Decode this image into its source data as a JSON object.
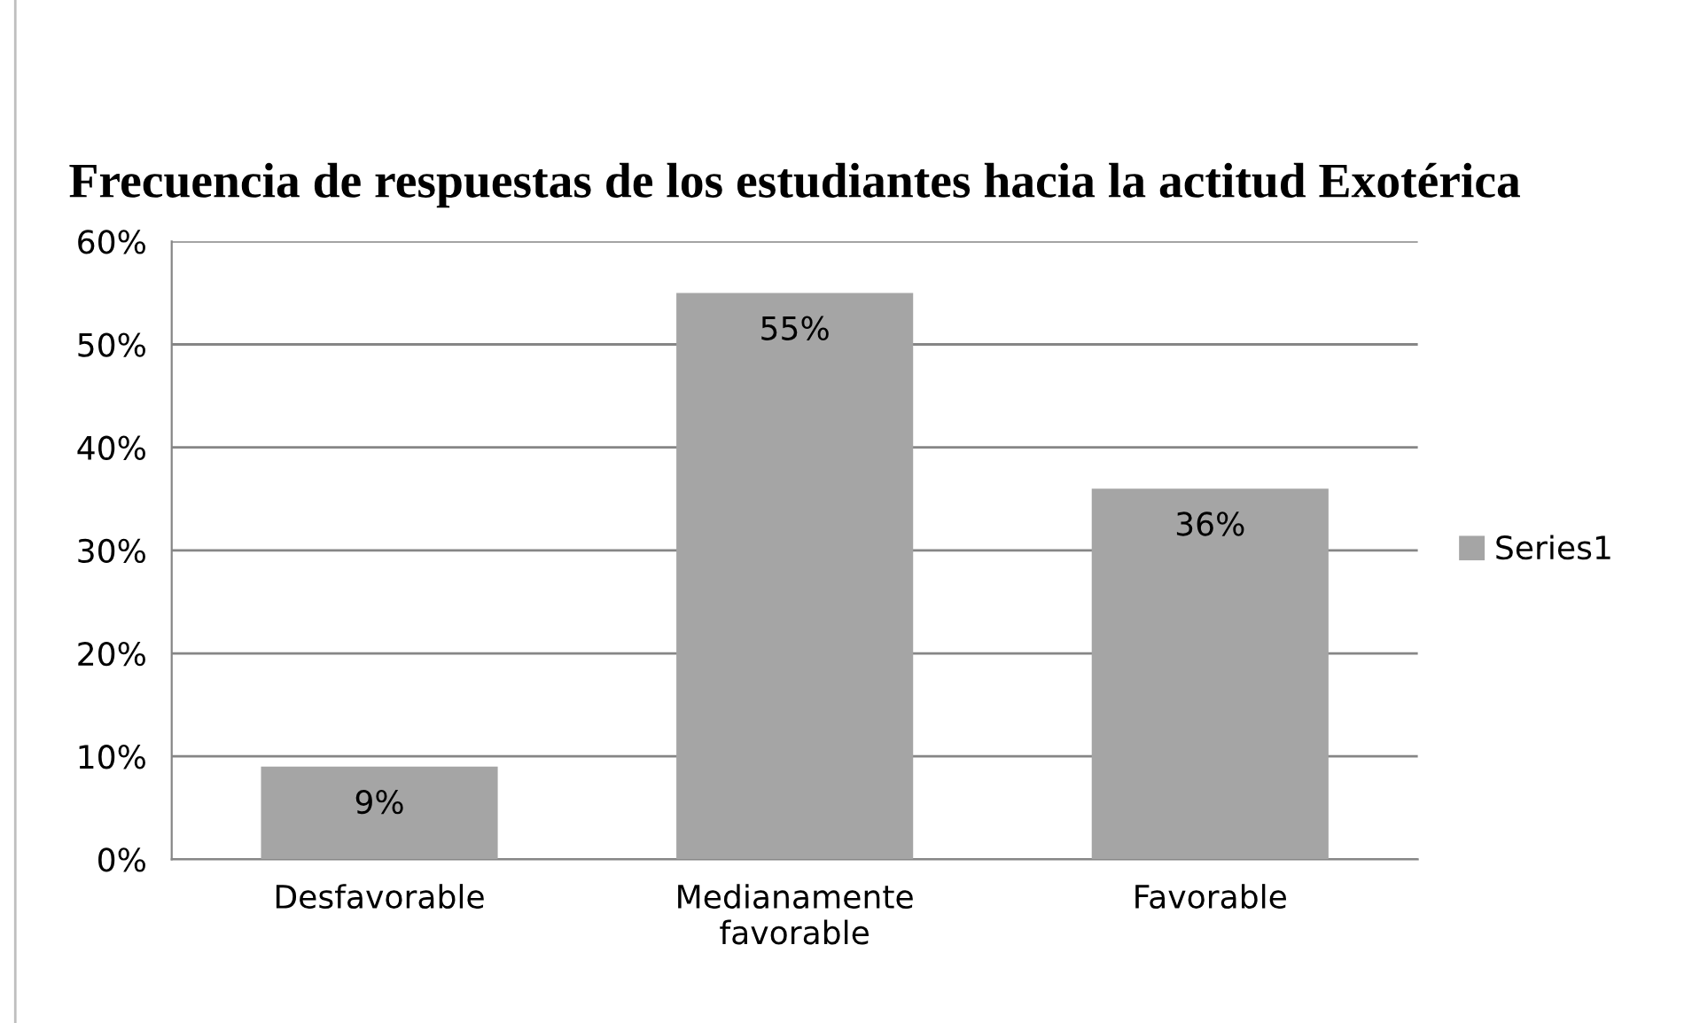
{
  "chart_data": {
    "type": "bar",
    "title": "Frecuencia de respuestas de los estudiantes hacia la actitud Exotérica",
    "categories": [
      "Desfavorable",
      "Medianamente\nfavorable",
      "Favorable"
    ],
    "series": [
      {
        "name": "Series1",
        "color": "#a5a5a5",
        "values": [
          9,
          55,
          36
        ]
      }
    ],
    "value_labels": [
      "9%",
      "55%",
      "36%"
    ],
    "ylim": [
      0,
      60
    ],
    "yticks": [
      {
        "value": 0,
        "label": "0%"
      },
      {
        "value": 10,
        "label": "10%"
      },
      {
        "value": 20,
        "label": "20%"
      },
      {
        "value": 30,
        "label": "30%"
      },
      {
        "value": 40,
        "label": "40%"
      },
      {
        "value": 50,
        "label": "50%"
      },
      {
        "value": 60,
        "label": "60%"
      }
    ],
    "grid": "y",
    "legend": "right"
  }
}
